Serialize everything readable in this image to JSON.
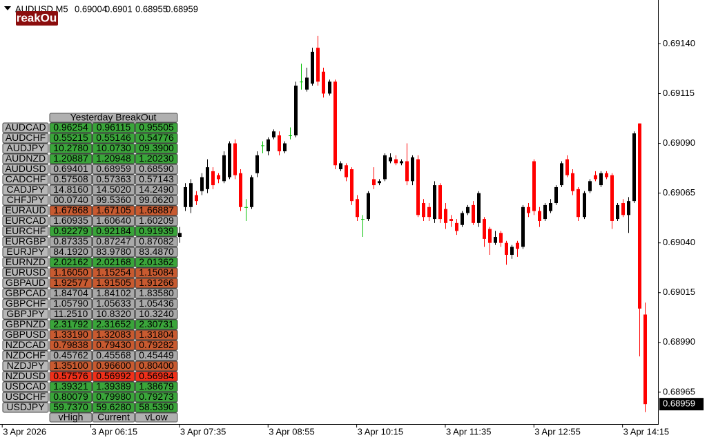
{
  "chart_data": {
    "type": "candlestick",
    "title": "AUDUSD,M5",
    "x": [
      "3 Apr 07:35",
      "3 Apr 07:40",
      "3 Apr 07:45",
      "3 Apr 07:50",
      "3 Apr 07:55",
      "3 Apr 08:00",
      "3 Apr 08:05",
      "3 Apr 08:10",
      "3 Apr 08:15",
      "3 Apr 08:20",
      "3 Apr 08:25",
      "3 Apr 08:30",
      "3 Apr 08:35",
      "3 Apr 08:40",
      "3 Apr 08:45",
      "3 Apr 08:50",
      "3 Apr 08:55",
      "3 Apr 09:00",
      "3 Apr 09:05",
      "3 Apr 09:10",
      "3 Apr 09:15",
      "3 Apr 09:20",
      "3 Apr 09:25",
      "3 Apr 09:30",
      "3 Apr 09:35",
      "3 Apr 09:40",
      "3 Apr 09:45",
      "3 Apr 09:50",
      "3 Apr 09:55",
      "3 Apr 10:00",
      "3 Apr 10:05",
      "3 Apr 10:10",
      "3 Apr 10:15",
      "3 Apr 10:20",
      "3 Apr 10:25",
      "3 Apr 10:30",
      "3 Apr 10:35",
      "3 Apr 10:40",
      "3 Apr 10:45",
      "3 Apr 10:50",
      "3 Apr 10:55",
      "3 Apr 11:00",
      "3 Apr 11:05",
      "3 Apr 11:10",
      "3 Apr 11:15",
      "3 Apr 11:20",
      "3 Apr 11:25",
      "3 Apr 11:30",
      "3 Apr 11:35",
      "3 Apr 11:40",
      "3 Apr 11:45",
      "3 Apr 11:50",
      "3 Apr 11:55",
      "3 Apr 12:00",
      "3 Apr 12:05",
      "3 Apr 12:10",
      "3 Apr 12:15",
      "3 Apr 12:20",
      "3 Apr 12:25",
      "3 Apr 12:30",
      "3 Apr 12:35",
      "3 Apr 12:40",
      "3 Apr 12:45",
      "3 Apr 12:50",
      "3 Apr 12:55",
      "3 Apr 13:00",
      "3 Apr 13:05",
      "3 Apr 13:10",
      "3 Apr 13:15",
      "3 Apr 13:20",
      "3 Apr 13:25",
      "3 Apr 13:30",
      "3 Apr 13:35",
      "3 Apr 13:40",
      "3 Apr 13:45",
      "3 Apr 13:50",
      "3 Apr 13:55",
      "3 Apr 14:00",
      "3 Apr 14:05",
      "3 Apr 14:10",
      "3 Apr 14:15",
      "3 Apr 14:20",
      "3 Apr 14:25",
      "3 Apr 14:30",
      "3 Apr 14:35"
    ],
    "open": [
      0.69043,
      0.69058,
      0.69058,
      0.69064,
      0.69066,
      0.69067,
      0.69076,
      0.69074,
      0.69071,
      0.69073,
      0.6909,
      0.69075,
      0.69058,
      0.69058,
      0.69075,
      0.69089,
      0.69086,
      0.69093,
      0.69094,
      0.69086,
      0.69094,
      0.69094,
      0.69121,
      0.69117,
      0.6912,
      0.69138,
      0.69126,
      0.69115,
      0.69121,
      0.69077,
      0.69079,
      0.69077,
      0.69062,
      0.69052,
      0.69052,
      0.69072,
      0.6907,
      0.69072,
      0.69081,
      0.69082,
      0.6908,
      0.69081,
      0.69071,
      0.69082,
      0.6906,
      0.69058,
      0.69052,
      0.69069,
      0.69057,
      0.69052,
      0.6905,
      0.69049,
      0.69055,
      0.69059,
      0.6905,
      0.69052,
      0.69047,
      0.6904,
      0.69045,
      0.6904,
      0.69034,
      0.6904,
      0.69038,
      0.69058,
      0.69081,
      0.69056,
      0.69052,
      0.69056,
      0.6906,
      0.69069,
      0.69082,
      0.69075,
      0.69067,
      0.69053,
      0.69066,
      0.69074,
      0.69069,
      0.69075,
      0.69074,
      0.69052,
      0.6906,
      0.69054,
      0.69061,
      0.691,
      0.69004
    ],
    "high": [
      0.69048,
      0.6907,
      0.69072,
      0.69066,
      0.69075,
      0.69082,
      0.69078,
      0.69075,
      0.69086,
      0.69091,
      0.69092,
      0.69077,
      0.69062,
      0.69074,
      0.69086,
      0.69091,
      0.69093,
      0.69097,
      0.69096,
      0.69091,
      0.69098,
      0.69121,
      0.6913,
      0.69128,
      0.69138,
      0.69144,
      0.69128,
      0.69122,
      0.69122,
      0.69081,
      0.6908,
      0.69078,
      0.69064,
      0.69054,
      0.69066,
      0.69078,
      0.69072,
      0.69085,
      0.69085,
      0.69084,
      0.69082,
      0.6909,
      0.69084,
      0.69084,
      0.69062,
      0.6906,
      0.69071,
      0.6907,
      0.6906,
      0.69054,
      0.69052,
      0.69056,
      0.69059,
      0.69061,
      0.69066,
      0.69053,
      0.69048,
      0.69046,
      0.69046,
      0.69041,
      0.69039,
      0.69041,
      0.69059,
      0.6906,
      0.69082,
      0.69058,
      0.6906,
      0.69062,
      0.69069,
      0.69081,
      0.69084,
      0.69077,
      0.69068,
      0.69066,
      0.69072,
      0.69076,
      0.69076,
      0.69076,
      0.69075,
      0.6906,
      0.69062,
      0.69063,
      0.69096,
      0.691,
      0.6901
    ],
    "low": [
      0.6904,
      0.69056,
      0.69055,
      0.69059,
      0.69064,
      0.69065,
      0.69067,
      0.6907,
      0.6907,
      0.69072,
      0.69072,
      0.69056,
      0.69051,
      0.69057,
      0.69073,
      0.69085,
      0.69084,
      0.69092,
      0.69084,
      0.69085,
      0.69092,
      0.69093,
      0.69117,
      0.69116,
      0.69119,
      0.69119,
      0.69113,
      0.69114,
      0.69077,
      0.69076,
      0.69071,
      0.69059,
      0.69051,
      0.69043,
      0.69051,
      0.69067,
      0.69069,
      0.69071,
      0.6908,
      0.69079,
      0.69079,
      0.69069,
      0.69069,
      0.69053,
      0.69051,
      0.69051,
      0.6905,
      0.6905,
      0.69047,
      0.69048,
      0.69044,
      0.69048,
      0.69054,
      0.69049,
      0.69048,
      0.69038,
      0.69034,
      0.69039,
      0.69038,
      0.69029,
      0.69032,
      0.69033,
      0.69037,
      0.69053,
      0.69054,
      0.69048,
      0.69051,
      0.69055,
      0.69059,
      0.69068,
      0.69073,
      0.69064,
      0.69051,
      0.69052,
      0.69065,
      0.69071,
      0.69068,
      0.69072,
      0.69047,
      0.69051,
      0.69053,
      0.69045,
      0.6906,
      0.68983,
      0.68955
    ],
    "close": [
      0.69045,
      0.69068,
      0.6907,
      0.69061,
      0.69073,
      0.69078,
      0.69069,
      0.69072,
      0.69084,
      0.6909,
      0.69074,
      0.69058,
      0.69058,
      0.69073,
      0.69084,
      0.69089,
      0.69092,
      0.69096,
      0.69086,
      0.6909,
      0.69094,
      0.69119,
      0.69121,
      0.69123,
      0.69136,
      0.69121,
      0.69115,
      0.69121,
      0.69079,
      0.6908,
      0.69073,
      0.69061,
      0.69053,
      0.69052,
      0.69065,
      0.69069,
      0.69071,
      0.69084,
      0.69083,
      0.6908,
      0.69081,
      0.69071,
      0.69083,
      0.69054,
      0.69053,
      0.69053,
      0.69069,
      0.69052,
      0.6905,
      0.69051,
      0.69046,
      0.69055,
      0.69058,
      0.6905,
      0.69065,
      0.69042,
      0.6904,
      0.69043,
      0.6904,
      0.69034,
      0.69038,
      0.69037,
      0.69058,
      0.69055,
      0.69056,
      0.69051,
      0.69059,
      0.6906,
      0.69068,
      0.6908,
      0.69074,
      0.69066,
      0.69053,
      0.69065,
      0.69071,
      0.69072,
      0.69075,
      0.69073,
      0.69051,
      0.69059,
      0.69054,
      0.69061,
      0.69095,
      0.69007,
      0.68959
    ],
    "up_color": "#000000",
    "down_color": "#ff0000",
    "doji_color": "#00c000",
    "xlim": [
      "3 Apr 04:53",
      "3 Apr 14:47"
    ],
    "xticks": [
      {
        "value": "3 Apr 04:55",
        "label": "3 Apr 2026"
      },
      "3 Apr 06:15",
      "3 Apr 07:35",
      "3 Apr 08:55",
      "3 Apr 10:15",
      "3 Apr 11:35",
      "3 Apr 12:55",
      "3 Apr 14:15"
    ],
    "ylim": [
      0.68949,
      0.69162
    ],
    "yticks": [
      0.68965,
      {
        "value": 0.6899,
        "label": "0.68990"
      },
      0.69015,
      {
        "value": 0.6904,
        "label": "0.69040"
      },
      0.69065,
      {
        "value": 0.6909,
        "label": "0.69090"
      },
      0.69115,
      {
        "value": 0.6914,
        "label": "0.69140"
      }
    ]
  },
  "logo": "reakOu",
  "table": {
    "title": "Yesterday BreakOut",
    "columns": [
      "vHigh",
      "Current",
      "vLow"
    ],
    "rows": [
      {
        "symbol": "AUDCAD",
        "values": [
          "0.96254",
          "0.96115",
          "0.95505"
        ],
        "color": "#3aa53a"
      },
      {
        "symbol": "AUDCHF",
        "values": [
          "0.55215",
          "0.55146",
          "0.54776"
        ],
        "color": "#3aa53a"
      },
      {
        "symbol": "AUDJPY",
        "values": [
          "10.2780",
          "10.0730",
          "09.3900"
        ],
        "color": "#3aa53a"
      },
      {
        "symbol": "AUDNZD",
        "values": [
          "1.20887",
          "1.20948",
          "1.20230"
        ],
        "color": "#3aa53a"
      },
      {
        "symbol": "AUDUSD",
        "values": [
          "0.69401",
          "0.68959",
          "0.68590"
        ],
        "color": "#a9a9a9"
      },
      {
        "symbol": "CADCHF",
        "values": [
          "0.57508",
          "0.57363",
          "0.57143"
        ],
        "color": "#a9a9a9"
      },
      {
        "symbol": "CADJPY",
        "values": [
          "14.8160",
          "14.5020",
          "14.2490"
        ],
        "color": "#a9a9a9"
      },
      {
        "symbol": "CHFJPY",
        "values": [
          "00.0740",
          "99.5360",
          "99.0620"
        ],
        "color": "#a9a9a9"
      },
      {
        "symbol": "EURAUD",
        "values": [
          "1.67868",
          "1.67105",
          "1.66887"
        ],
        "color": "#c85a30"
      },
      {
        "symbol": "EURCAD",
        "values": [
          "1.60935",
          "1.60640",
          "1.60209"
        ],
        "color": "#a9a9a9"
      },
      {
        "symbol": "EURCHF",
        "values": [
          "0.92279",
          "0.92184",
          "0.91939"
        ],
        "color": "#3aa53a"
      },
      {
        "symbol": "EURGBP",
        "values": [
          "0.87335",
          "0.87247",
          "0.87082"
        ],
        "color": "#a9a9a9"
      },
      {
        "symbol": "EURJPY",
        "values": [
          "84.1920",
          "83.9780",
          "83.4870"
        ],
        "color": "#a9a9a9"
      },
      {
        "symbol": "EURNZD",
        "values": [
          "2.02162",
          "2.02168",
          "2.01362"
        ],
        "color": "#3aa53a"
      },
      {
        "symbol": "EURUSD",
        "values": [
          "1.16050",
          "1.15254",
          "1.15084"
        ],
        "color": "#c85a30"
      },
      {
        "symbol": "GBPAUD",
        "values": [
          "1.92577",
          "1.91505",
          "1.91266"
        ],
        "color": "#c85a30"
      },
      {
        "symbol": "GBPCAD",
        "values": [
          "1.84704",
          "1.84102",
          "1.83580"
        ],
        "color": "#a9a9a9"
      },
      {
        "symbol": "GBPCHF",
        "values": [
          "1.05790",
          "1.05633",
          "1.05436"
        ],
        "color": "#a9a9a9"
      },
      {
        "symbol": "GBPJPY",
        "values": [
          "11.2510",
          "10.8320",
          "10.3240"
        ],
        "color": "#a9a9a9"
      },
      {
        "symbol": "GBPNZD",
        "values": [
          "2.31792",
          "2.31652",
          "2.30731"
        ],
        "color": "#3aa53a"
      },
      {
        "symbol": "GBPUSD",
        "values": [
          "1.33190",
          "1.32083",
          "1.31804"
        ],
        "color": "#c85a30"
      },
      {
        "symbol": "NZDCAD",
        "values": [
          "0.79838",
          "0.79430",
          "0.79282"
        ],
        "color": "#c85a30"
      },
      {
        "symbol": "NZDCHF",
        "values": [
          "0.45762",
          "0.45568",
          "0.45449"
        ],
        "color": "#a9a9a9"
      },
      {
        "symbol": "NZDJPY",
        "values": [
          "1.35100",
          "0.96600",
          "0.80400"
        ],
        "color": "#c85a30"
      },
      {
        "symbol": "NZDUSD",
        "values": [
          "0.57576",
          "0.56992",
          "0.56984"
        ],
        "color": "#f0301a"
      },
      {
        "symbol": "USDCAD",
        "values": [
          "1.39321",
          "1.39389",
          "1.38679"
        ],
        "color": "#3aa53a"
      },
      {
        "symbol": "USDCHF",
        "values": [
          "0.80079",
          "0.79980",
          "0.79273"
        ],
        "color": "#3aa53a"
      },
      {
        "symbol": "USDJPY",
        "values": [
          "59.7370",
          "59.6280",
          "58.5390"
        ],
        "color": "#3aa53a"
      }
    ]
  }
}
